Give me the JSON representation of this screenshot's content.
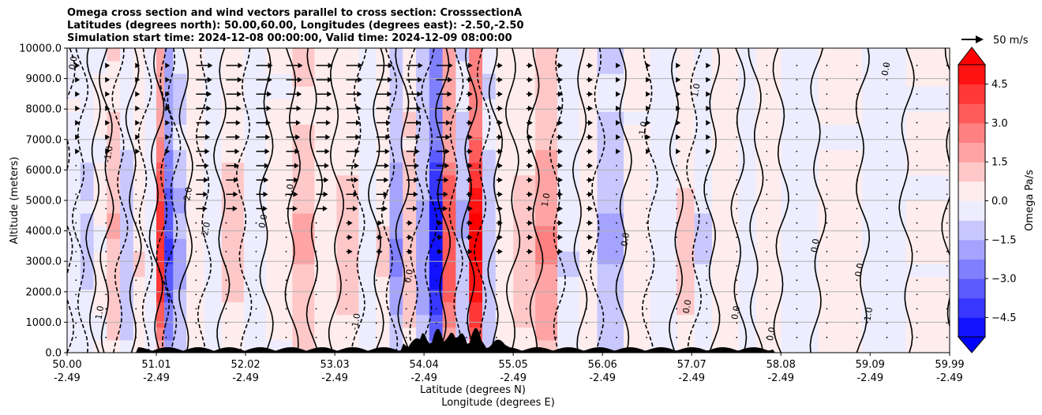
{
  "chart_data": {
    "type": "heatmap",
    "title_lines": [
      "Omega cross section and wind vectors parallel to cross section: CrosssectionA",
      "Latitudes (degrees north): 50.00,60.00, Longitudes (degrees east): -2.50,-2.50",
      "Simulation start time: 2024-12-08 00:00:00, Valid time: 2024-12-09 08:00:00"
    ],
    "ylabel": "Altitude (meters)",
    "xlabel_lat": "Latitude (degrees N)",
    "xlabel_lon": "Longitude (degrees E)",
    "ylim": [
      0,
      10000
    ],
    "y_ticks": [
      "0.0",
      "1000.0",
      "2000.0",
      "3000.0",
      "4000.0",
      "5000.0",
      "6000.0",
      "7000.0",
      "8000.0",
      "9000.0",
      "10000.0"
    ],
    "x_ticks": [
      {
        "lat": "50.00",
        "lon": "-2.49"
      },
      {
        "lat": "51.01",
        "lon": "-2.49"
      },
      {
        "lat": "52.02",
        "lon": "-2.49"
      },
      {
        "lat": "53.03",
        "lon": "-2.49"
      },
      {
        "lat": "54.04",
        "lon": "-2.49"
      },
      {
        "lat": "55.05",
        "lon": "-2.49"
      },
      {
        "lat": "56.06",
        "lon": "-2.49"
      },
      {
        "lat": "57.07",
        "lon": "-2.49"
      },
      {
        "lat": "58.08",
        "lon": "-2.49"
      },
      {
        "lat": "59.09",
        "lon": "-2.49"
      },
      {
        "lat": "59.99",
        "lon": "-2.49"
      }
    ],
    "colorbar": {
      "label": "Omega Pa/s",
      "range": [
        -5.25,
        5.25
      ],
      "ticks": [
        "-4.5",
        "−3.0",
        "−1.5",
        "0.0",
        "1.5",
        "3.0",
        "4.5"
      ],
      "ticks_display": [
        "4.5",
        "3.0",
        "1.5",
        "0.0",
        "−1.5",
        "−3.0",
        "−4.5"
      ],
      "levels": [
        -5.25,
        -4.5,
        -3.75,
        -3.0,
        -2.25,
        -1.5,
        -0.75,
        0,
        0.75,
        1.5,
        2.25,
        3.0,
        3.75,
        4.5,
        5.25
      ]
    },
    "quiver_key": "50 m/s",
    "omega_bands": [
      {
        "lat": 50.0,
        "omega": -0.2
      },
      {
        "lat": 50.15,
        "omega": -0.8
      },
      {
        "lat": 50.3,
        "omega": 0.1
      },
      {
        "lat": 50.45,
        "omega": 1.3
      },
      {
        "lat": 50.6,
        "omega": -0.9
      },
      {
        "lat": 50.75,
        "omega": 0.6
      },
      {
        "lat": 50.88,
        "omega": -0.4
      },
      {
        "lat": 51.01,
        "omega": 3.8
      },
      {
        "lat": 51.1,
        "omega": -3.2
      },
      {
        "lat": 51.2,
        "omega": -1.4
      },
      {
        "lat": 51.35,
        "omega": 0.3
      },
      {
        "lat": 51.55,
        "omega": -0.4
      },
      {
        "lat": 51.75,
        "omega": 0.9
      },
      {
        "lat": 52.0,
        "omega": -0.3
      },
      {
        "lat": 52.25,
        "omega": 0.2
      },
      {
        "lat": 52.55,
        "omega": 1.4
      },
      {
        "lat": 52.8,
        "omega": 0.3
      },
      {
        "lat": 53.05,
        "omega": 0.8
      },
      {
        "lat": 53.3,
        "omega": -0.3
      },
      {
        "lat": 53.5,
        "omega": 0.7
      },
      {
        "lat": 53.65,
        "omega": -2.0
      },
      {
        "lat": 53.8,
        "omega": 1.2
      },
      {
        "lat": 53.95,
        "omega": -1.6
      },
      {
        "lat": 54.1,
        "omega": -4.4
      },
      {
        "lat": 54.25,
        "omega": 3.2
      },
      {
        "lat": 54.4,
        "omega": -1.3
      },
      {
        "lat": 54.55,
        "omega": 4.8
      },
      {
        "lat": 54.7,
        "omega": -1.2
      },
      {
        "lat": 54.85,
        "omega": 0.4
      },
      {
        "lat": 55.05,
        "omega": 1.0
      },
      {
        "lat": 55.3,
        "omega": 2.0
      },
      {
        "lat": 55.55,
        "omega": -0.6
      },
      {
        "lat": 55.8,
        "omega": 0.3
      },
      {
        "lat": 56.0,
        "omega": -1.4
      },
      {
        "lat": 56.3,
        "omega": 0.2
      },
      {
        "lat": 56.6,
        "omega": -0.4
      },
      {
        "lat": 56.9,
        "omega": 0.8
      },
      {
        "lat": 57.1,
        "omega": -0.7
      },
      {
        "lat": 57.3,
        "omega": 0.4
      },
      {
        "lat": 57.6,
        "omega": -0.3
      },
      {
        "lat": 57.8,
        "omega": 0.3
      },
      {
        "lat": 58.08,
        "omega": -0.3
      },
      {
        "lat": 58.5,
        "omega": 0.15
      },
      {
        "lat": 59.0,
        "omega": -0.2
      },
      {
        "lat": 59.5,
        "omega": 0.1
      },
      {
        "lat": 59.99,
        "omega": 0.1
      }
    ],
    "contour_labels": [
      "0.0",
      "1.0",
      "-1.0",
      "2.0",
      "-2.0",
      "0.0",
      "1.0",
      "-1.0",
      "0.0",
      "1.0",
      "0.0",
      "-1.0",
      "0.0",
      "1.0",
      "0.0",
      "0.0",
      "0.0",
      "0.0",
      "-1.0",
      "0.0"
    ]
  }
}
